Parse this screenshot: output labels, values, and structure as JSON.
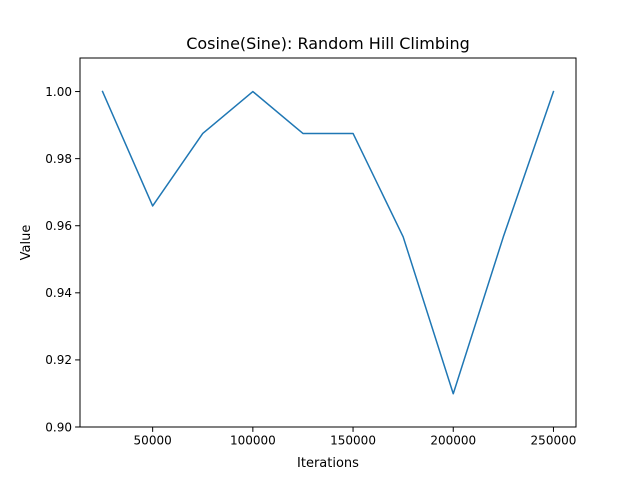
{
  "chart_data": {
    "type": "line",
    "title": "Cosine(Sine): Random Hill Climbing",
    "xlabel": "Iterations",
    "ylabel": "Value",
    "xlim": [
      13750,
      261250
    ],
    "ylim": [
      0.9,
      1.01
    ],
    "x_ticks": [
      50000,
      100000,
      150000,
      200000,
      250000
    ],
    "y_ticks": [
      0.9,
      0.92,
      0.94,
      0.96,
      0.98,
      1.0
    ],
    "x_tick_labels": [
      "50000",
      "100000",
      "150000",
      "200000",
      "250000"
    ],
    "y_tick_labels": [
      "0.90",
      "0.92",
      "0.94",
      "0.96",
      "0.98",
      "1.00"
    ],
    "grid": false,
    "series": [
      {
        "color": "#1f77b4",
        "x": [
          25000,
          50000,
          75000,
          100000,
          125000,
          150000,
          175000,
          200000,
          225000,
          250000
        ],
        "y": [
          1.0,
          0.9659,
          0.9875,
          1.0,
          0.9875,
          0.9875,
          0.9567,
          0.9099,
          0.9567,
          1.0
        ]
      }
    ]
  }
}
